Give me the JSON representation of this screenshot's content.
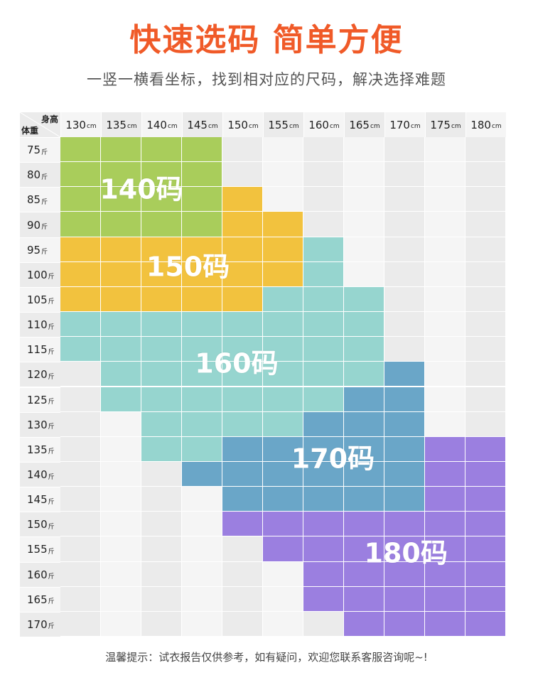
{
  "title": "快速选码 简单方便",
  "subtitle": "一竖一横看坐标，找到相对应的尺码，解决选择难题",
  "footnote": "温馨提示：试衣报告仅供参考，如有疑问，欢迎您联系客服咨询呢~!",
  "chart_data": {
    "type": "table",
    "corner_top": "身高",
    "corner_bottom": "体重",
    "height_unit": "cm",
    "weight_unit": "斤",
    "heights": [
      130,
      135,
      140,
      145,
      150,
      155,
      160,
      165,
      170,
      175,
      180
    ],
    "weights": [
      75,
      80,
      85,
      90,
      95,
      100,
      105,
      110,
      115,
      120,
      125,
      130,
      135,
      140,
      145,
      150,
      155,
      160,
      165,
      170
    ],
    "sizes": [
      {
        "label": "140码",
        "color": "#a9cd5b"
      },
      {
        "label": "150码",
        "color": "#f2c23e"
      },
      {
        "label": "160码",
        "color": "#96d5cf"
      },
      {
        "label": "170码",
        "color": "#6aa6c8"
      },
      {
        "label": "180码",
        "color": "#9b7fe0"
      }
    ],
    "grid": [
      [
        0,
        0,
        0,
        0,
        -1,
        -1,
        -1,
        -1,
        -1,
        -1,
        -1
      ],
      [
        0,
        0,
        0,
        0,
        -1,
        -1,
        -1,
        -1,
        -1,
        -1,
        -1
      ],
      [
        0,
        0,
        0,
        0,
        1,
        -1,
        -1,
        -1,
        -1,
        -1,
        -1
      ],
      [
        0,
        0,
        0,
        0,
        1,
        1,
        -1,
        -1,
        -1,
        -1,
        -1
      ],
      [
        1,
        1,
        1,
        1,
        1,
        1,
        2,
        -1,
        -1,
        -1,
        -1
      ],
      [
        1,
        1,
        1,
        1,
        1,
        1,
        2,
        -1,
        -1,
        -1,
        -1
      ],
      [
        1,
        1,
        1,
        1,
        1,
        2,
        2,
        2,
        -1,
        -1,
        -1
      ],
      [
        2,
        2,
        2,
        2,
        2,
        2,
        2,
        2,
        -1,
        -1,
        -1
      ],
      [
        2,
        2,
        2,
        2,
        2,
        2,
        2,
        2,
        -1,
        -1,
        -1
      ],
      [
        -1,
        2,
        2,
        2,
        2,
        2,
        2,
        2,
        3,
        -1,
        -1
      ],
      [
        -1,
        2,
        2,
        2,
        2,
        2,
        2,
        3,
        3,
        -1,
        -1
      ],
      [
        -1,
        -1,
        2,
        2,
        2,
        2,
        3,
        3,
        3,
        -1,
        -1
      ],
      [
        -1,
        -1,
        2,
        2,
        3,
        3,
        3,
        3,
        3,
        4,
        4
      ],
      [
        -1,
        -1,
        -1,
        3,
        3,
        3,
        3,
        3,
        3,
        4,
        4
      ],
      [
        -1,
        -1,
        -1,
        -1,
        3,
        3,
        3,
        3,
        3,
        4,
        4
      ],
      [
        -1,
        -1,
        -1,
        -1,
        4,
        4,
        4,
        4,
        4,
        4,
        4
      ],
      [
        -1,
        -1,
        -1,
        -1,
        -1,
        4,
        4,
        4,
        4,
        4,
        4
      ],
      [
        -1,
        -1,
        -1,
        -1,
        -1,
        -1,
        4,
        4,
        4,
        4,
        4
      ],
      [
        -1,
        -1,
        -1,
        -1,
        -1,
        -1,
        4,
        4,
        4,
        4,
        4
      ],
      [
        -1,
        -1,
        -1,
        -1,
        -1,
        -1,
        -1,
        4,
        4,
        4,
        4
      ]
    ],
    "background_colors": [
      "#ebebeb",
      "#f5f5f5"
    ]
  }
}
